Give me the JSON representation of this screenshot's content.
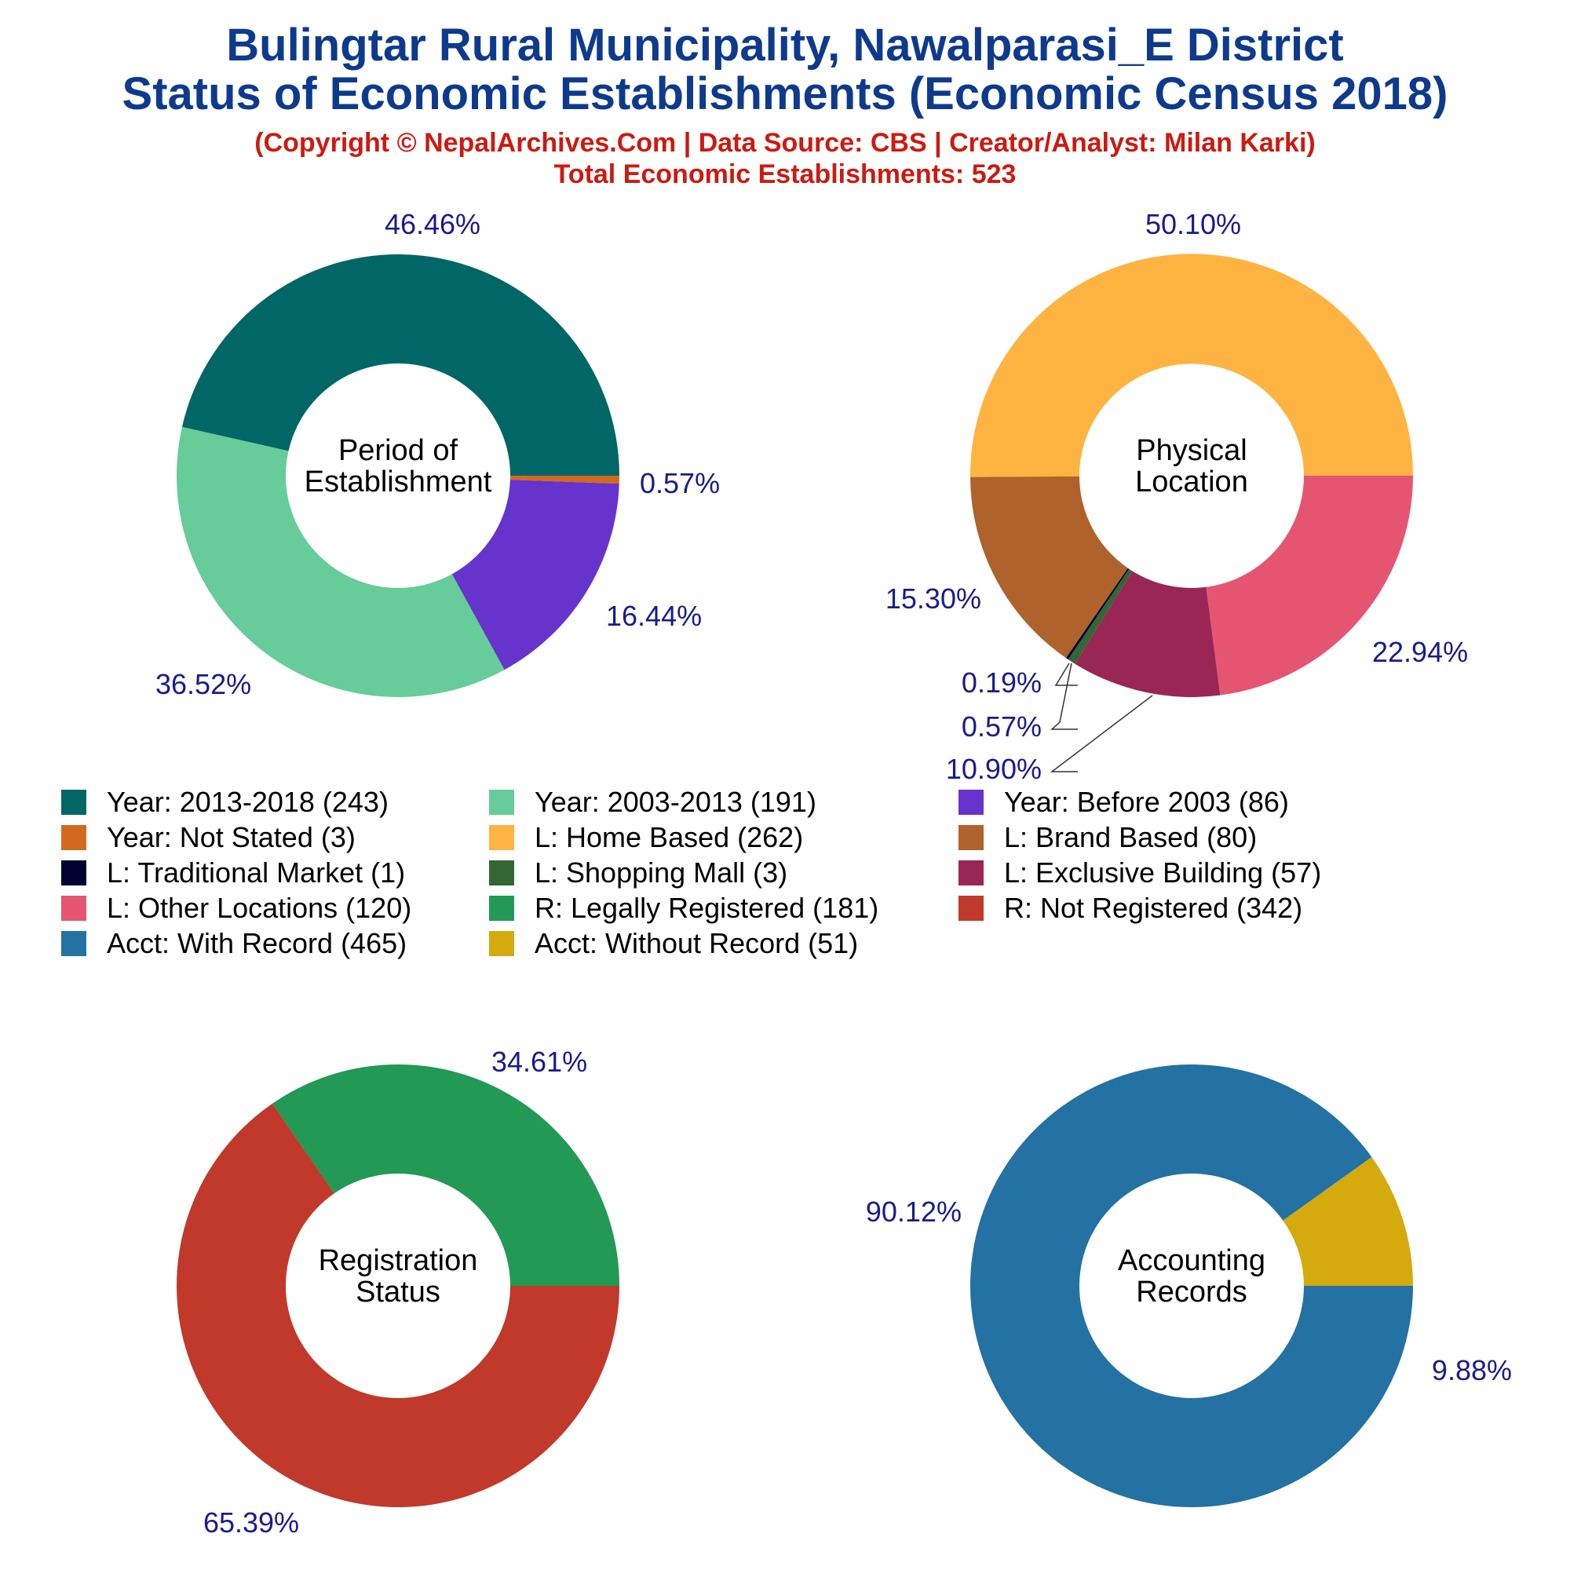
{
  "header": {
    "title_line1": "Bulingtar Rural Municipality, Nawalparasi_E District",
    "title_line2": "Status of Economic Establishments (Economic Census 2018)",
    "copyright": "(Copyright © NepalArchives.Com | Data Source: CBS | Creator/Analyst: Milan Karki)",
    "total": "Total Economic Establishments: 523"
  },
  "colors": {
    "title": "#0d3a8c",
    "subtitle": "#cc1a10",
    "percent_label": "#1a1a8c"
  },
  "chart_data": [
    {
      "type": "pie",
      "center_label": [
        "Period of",
        "Establishment"
      ],
      "slices": [
        {
          "name": "Year: 2013-2018",
          "value": 243,
          "percent_label": "46.46%",
          "color": "#006666"
        },
        {
          "name": "Year: Not Stated",
          "value": 3,
          "percent_label": "0.57%",
          "color": "#d2691e"
        },
        {
          "name": "Year: Before 2003",
          "value": 86,
          "percent_label": "16.44%",
          "color": "#6633cc"
        },
        {
          "name": "Year: 2003-2013",
          "value": 191,
          "percent_label": "36.52%",
          "color": "#66cc99"
        }
      ]
    },
    {
      "type": "pie",
      "center_label": [
        "Physical",
        "Location"
      ],
      "slices": [
        {
          "name": "L: Home Based",
          "value": 262,
          "percent_label": "50.10%",
          "color": "#ffb340"
        },
        {
          "name": "L: Other Locations",
          "value": 120,
          "percent_label": "22.94%",
          "color": "#e55572"
        },
        {
          "name": "L: Exclusive Building",
          "value": 57,
          "percent_label": "10.90%",
          "color": "#992655"
        },
        {
          "name": "L: Shopping Mall",
          "value": 3,
          "percent_label": "0.57%",
          "color": "#336633"
        },
        {
          "name": "L: Traditional Market",
          "value": 1,
          "percent_label": "0.19%",
          "color": "#000033"
        },
        {
          "name": "L: Brand Based",
          "value": 80,
          "percent_label": "15.30%",
          "color": "#b0622d"
        }
      ]
    },
    {
      "type": "pie",
      "center_label": [
        "Registration",
        "Status"
      ],
      "slices": [
        {
          "name": "R: Legally Registered",
          "value": 181,
          "percent_label": "34.61%",
          "color": "#229955"
        },
        {
          "name": "R: Not Registered",
          "value": 342,
          "percent_label": "65.39%",
          "color": "#c0392b"
        }
      ]
    },
    {
      "type": "pie",
      "center_label": [
        "Accounting",
        "Records"
      ],
      "slices": [
        {
          "name": "Acct: Without Record",
          "value": 51,
          "percent_label": "9.88%",
          "color": "#d4aa0d"
        },
        {
          "name": "Acct: With Record",
          "value": 465,
          "percent_label": "90.12%",
          "color": "#2471a3"
        }
      ]
    }
  ],
  "legend": [
    {
      "text": "Year: 2013-2018 (243)",
      "color": "#006666"
    },
    {
      "text": "Year: 2003-2013 (191)",
      "color": "#66cc99"
    },
    {
      "text": "Year: Before 2003 (86)",
      "color": "#6633cc"
    },
    {
      "text": "Year: Not Stated (3)",
      "color": "#d2691e"
    },
    {
      "text": "L: Home Based (262)",
      "color": "#ffb340"
    },
    {
      "text": "L: Brand Based (80)",
      "color": "#b0622d"
    },
    {
      "text": "L: Traditional Market (1)",
      "color": "#000033"
    },
    {
      "text": "L: Shopping Mall (3)",
      "color": "#336633"
    },
    {
      "text": "L: Exclusive Building (57)",
      "color": "#992655"
    },
    {
      "text": "L: Other Locations (120)",
      "color": "#e55572"
    },
    {
      "text": "R: Legally Registered (181)",
      "color": "#229955"
    },
    {
      "text": "R: Not Registered (342)",
      "color": "#c0392b"
    },
    {
      "text": "Acct: With Record (465)",
      "color": "#2471a3"
    },
    {
      "text": "Acct: Without Record (51)",
      "color": "#d4aa0d"
    }
  ]
}
